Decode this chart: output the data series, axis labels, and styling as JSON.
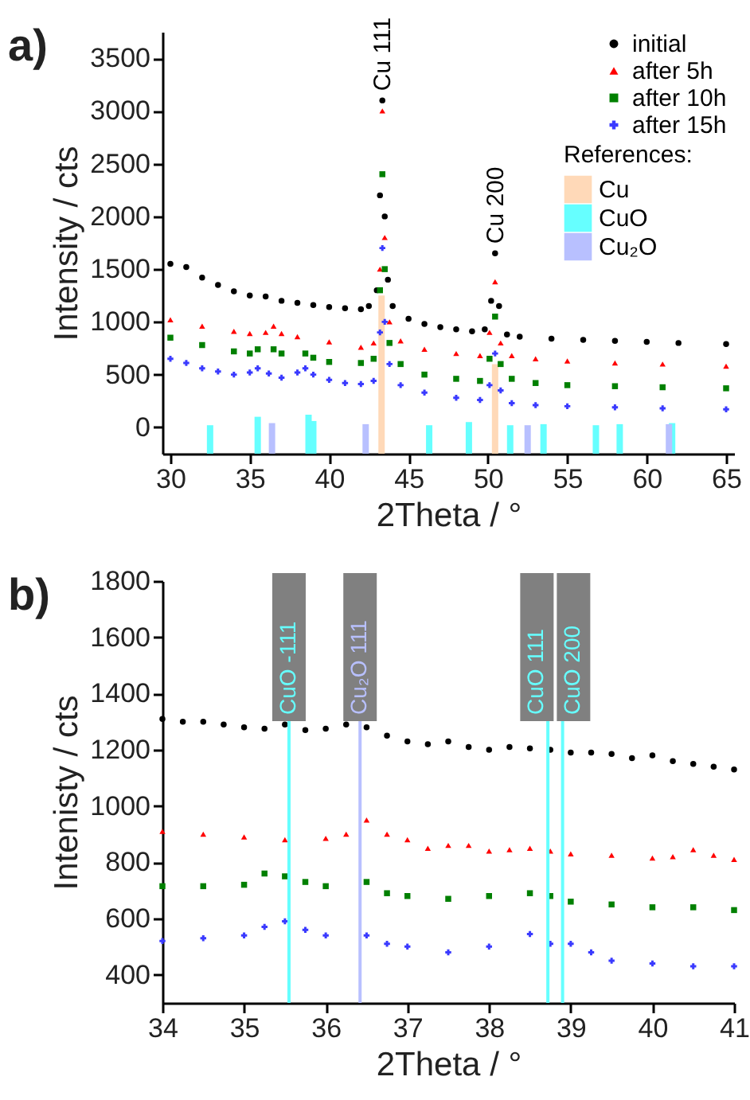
{
  "chart_data": [
    {
      "type": "scatter",
      "title": "a)",
      "xlabel": "2Theta / °",
      "ylabel": "Intensity / cts",
      "legend": "top right",
      "legend_title": "References:",
      "xlim": [
        30,
        65
      ],
      "xticks": [
        30,
        35,
        40,
        45,
        50,
        55,
        60,
        65
      ],
      "ylim": [
        -250,
        3750
      ],
      "yticks": [
        0,
        500,
        1000,
        1500,
        2000,
        2500,
        3000,
        3500
      ],
      "annotations": [
        {
          "text": "Cu 111",
          "x": 43.35,
          "y": 3100
        },
        {
          "text": "Cu 200",
          "x": 50.45,
          "y": 1650
        }
      ],
      "series": [
        {
          "type": "bar",
          "name": "Cu",
          "color": "#ffd9b8",
          "x": [
            43.3,
            50.45
          ],
          "base": [
            -250,
            -250
          ],
          "values": [
            1500,
            850
          ]
        },
        {
          "type": "bar",
          "name": "CuO",
          "color": "#66ffff",
          "x": [
            32.5,
            35.5,
            38.7,
            39.0,
            46.3,
            48.8,
            51.4,
            53.5,
            56.8,
            58.3,
            61.6
          ],
          "base": [
            -250,
            -250,
            -250,
            -250,
            -250,
            -250,
            -250,
            -250,
            -250,
            -250,
            -250
          ],
          "values": [
            270,
            350,
            370,
            310,
            270,
            300,
            270,
            280,
            270,
            280,
            290
          ]
        },
        {
          "type": "bar",
          "name": "Cu₂O",
          "color": "#b8c0ff",
          "x": [
            36.4,
            42.3,
            52.5,
            61.4
          ],
          "base": [
            -250,
            -250,
            -250,
            -250
          ],
          "values": [
            290,
            280,
            270,
            280
          ]
        },
        {
          "name": "initial",
          "color": "#000000",
          "marker": "circle",
          "x": [
            30,
            31,
            32,
            33,
            34,
            35,
            36,
            37,
            38,
            39,
            40,
            41,
            42,
            42.5,
            43,
            43.2,
            43.35,
            43.5,
            43.7,
            44,
            45,
            46,
            47,
            48,
            49,
            49.8,
            50.2,
            50.45,
            50.7,
            51.2,
            52,
            54,
            56,
            58,
            60,
            62,
            65
          ],
          "values": [
            1550,
            1520,
            1420,
            1350,
            1290,
            1250,
            1240,
            1200,
            1180,
            1160,
            1140,
            1130,
            1120,
            1150,
            1300,
            2200,
            3100,
            2000,
            1400,
            1150,
            1030,
            980,
            950,
            930,
            910,
            930,
            1200,
            1650,
            1150,
            880,
            860,
            840,
            830,
            820,
            810,
            800,
            790
          ]
        },
        {
          "name": "after 5h",
          "color": "#ff0000",
          "marker": "triangle",
          "x": [
            30,
            32,
            34,
            35,
            36,
            36.5,
            37,
            38,
            40,
            42,
            42.8,
            43.2,
            43.35,
            43.5,
            43.8,
            44.5,
            46,
            48,
            49.5,
            50.1,
            50.45,
            50.8,
            51.5,
            53,
            55,
            58,
            61,
            65
          ],
          "values": [
            1020,
            960,
            910,
            890,
            900,
            960,
            890,
            860,
            810,
            760,
            800,
            1500,
            3000,
            1800,
            1000,
            820,
            740,
            700,
            680,
            900,
            1380,
            800,
            680,
            650,
            630,
            610,
            600,
            580
          ]
        },
        {
          "name": "after 10h",
          "color": "#008000",
          "marker": "square",
          "x": [
            30,
            32,
            34,
            35,
            35.5,
            36.5,
            37,
            38.5,
            39,
            40,
            42,
            42.8,
            43.2,
            43.35,
            43.5,
            43.8,
            44.5,
            46,
            48,
            49.5,
            50.1,
            50.45,
            50.8,
            51.5,
            53,
            55,
            58,
            61,
            65
          ],
          "values": [
            850,
            780,
            720,
            700,
            740,
            740,
            700,
            700,
            660,
            620,
            610,
            650,
            1300,
            2400,
            1500,
            800,
            600,
            500,
            460,
            440,
            650,
            1050,
            600,
            460,
            420,
            400,
            390,
            380,
            370
          ]
        },
        {
          "name": "after 15h",
          "color": "#3a3aff",
          "marker": "cross",
          "x": [
            30,
            31,
            32,
            33,
            34,
            35,
            35.5,
            36.2,
            37,
            38,
            38.5,
            39,
            40,
            41,
            42,
            42.8,
            43.2,
            43.35,
            43.5,
            43.8,
            44.5,
            46,
            48,
            49.5,
            50.1,
            50.45,
            50.8,
            51.5,
            53,
            55,
            58,
            61,
            65
          ],
          "values": [
            650,
            610,
            560,
            530,
            500,
            520,
            560,
            510,
            470,
            520,
            560,
            500,
            450,
            420,
            410,
            440,
            900,
            1700,
            1000,
            600,
            400,
            330,
            280,
            260,
            400,
            700,
            350,
            230,
            210,
            200,
            190,
            180,
            170
          ]
        }
      ]
    },
    {
      "type": "scatter",
      "title": "b)",
      "xlabel": "2Theta / °",
      "ylabel": "Intenisty / cts",
      "xlim": [
        34,
        41
      ],
      "xticks": [
        34,
        35,
        36,
        37,
        38,
        39,
        40,
        41
      ],
      "ylim": [
        300,
        1800
      ],
      "yticks": [
        400,
        600,
        800,
        1000,
        1200,
        1400,
        1600,
        1800
      ],
      "ref_lines": [
        {
          "axis": "x",
          "value": 35.55,
          "label": "CuO -111",
          "color": "#66ffff"
        },
        {
          "axis": "x",
          "value": 36.42,
          "label": "Cu₂O 111",
          "color": "#b8c0ff"
        },
        {
          "axis": "x",
          "value": 38.72,
          "label": "CuO 111",
          "color": "#66ffff"
        },
        {
          "axis": "x",
          "value": 38.9,
          "label": "CuO 200",
          "color": "#66ffff"
        }
      ],
      "series": [
        {
          "color": "#000000",
          "marker": "circle",
          "x": [
            34,
            34.25,
            34.5,
            34.75,
            35,
            35.25,
            35.5,
            35.75,
            36,
            36.25,
            36.5,
            36.75,
            37,
            37.25,
            37.5,
            37.75,
            38,
            38.25,
            38.5,
            38.75,
            39,
            39.25,
            39.5,
            39.75,
            40,
            40.25,
            40.5,
            40.75,
            41
          ],
          "values": [
            1310,
            1300,
            1300,
            1290,
            1280,
            1275,
            1290,
            1270,
            1275,
            1290,
            1280,
            1250,
            1230,
            1220,
            1230,
            1210,
            1200,
            1210,
            1205,
            1200,
            1190,
            1190,
            1185,
            1170,
            1180,
            1160,
            1150,
            1140,
            1130
          ]
        },
        {
          "color": "#ff0000",
          "marker": "triangle",
          "x": [
            34,
            34.5,
            35,
            35.5,
            36,
            36.25,
            36.5,
            36.75,
            37,
            37.25,
            37.5,
            37.75,
            38,
            38.25,
            38.5,
            38.75,
            39,
            39.5,
            40,
            40.25,
            40.5,
            40.75,
            41
          ],
          "values": [
            910,
            900,
            890,
            880,
            885,
            900,
            950,
            900,
            880,
            850,
            860,
            860,
            840,
            845,
            850,
            840,
            830,
            825,
            815,
            820,
            845,
            825,
            810
          ]
        },
        {
          "color": "#008000",
          "marker": "square",
          "x": [
            34,
            34.5,
            35,
            35.25,
            35.5,
            35.75,
            36,
            36.5,
            36.75,
            37,
            37.5,
            38,
            38.5,
            38.75,
            39,
            39.5,
            40,
            40.5,
            41
          ],
          "values": [
            715,
            715,
            720,
            760,
            750,
            730,
            715,
            730,
            690,
            680,
            670,
            680,
            690,
            680,
            660,
            650,
            640,
            640,
            630
          ]
        },
        {
          "color": "#3a3aff",
          "marker": "cross",
          "x": [
            34,
            34.5,
            35,
            35.25,
            35.5,
            35.75,
            36,
            36.5,
            36.75,
            37,
            37.5,
            38,
            38.5,
            38.75,
            39,
            39.25,
            39.5,
            40,
            40.5,
            41
          ],
          "values": [
            520,
            530,
            540,
            570,
            590,
            560,
            540,
            540,
            510,
            500,
            480,
            500,
            545,
            510,
            510,
            480,
            450,
            440,
            430,
            430
          ]
        }
      ]
    }
  ]
}
